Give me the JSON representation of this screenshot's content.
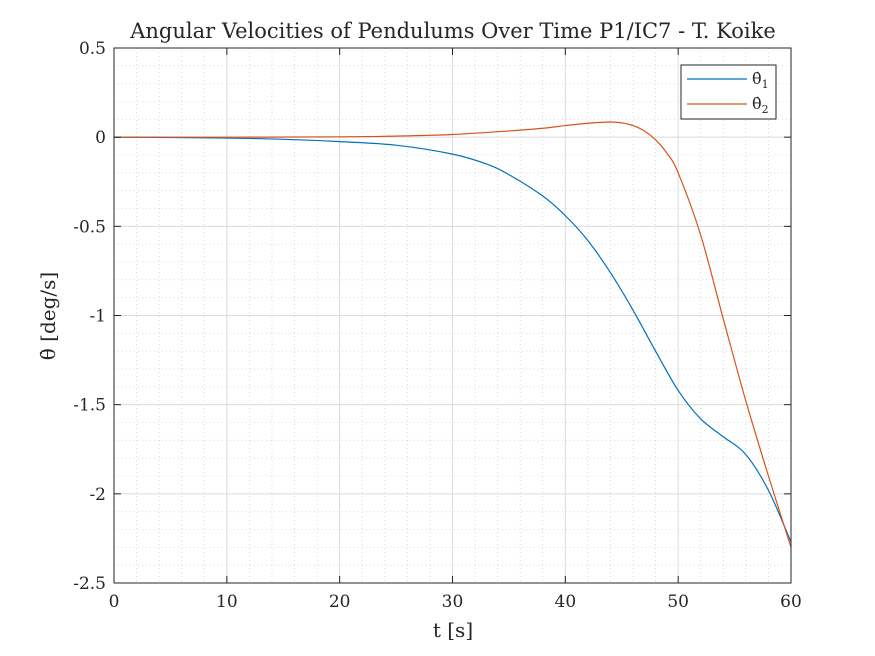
{
  "chart_data": {
    "type": "line",
    "title": "Angular Velocities of Pendulums Over Time P1/IC7 - T. Koike",
    "xlabel": "t [s]",
    "ylabel": "θ̇ [deg/s]",
    "xlim": [
      0,
      60
    ],
    "ylim": [
      -2.5,
      0.5
    ],
    "xticks": [
      0,
      10,
      20,
      30,
      40,
      50,
      60
    ],
    "yticks": [
      0.5,
      0,
      -0.5,
      -1,
      -1.5,
      -2,
      -2.5
    ],
    "xtick_labels": [
      "0",
      "10",
      "20",
      "30",
      "40",
      "50",
      "60"
    ],
    "ytick_labels": [
      "0.5",
      "0",
      "-0.5",
      "-1",
      "-1.5",
      "-2",
      "-2.5"
    ],
    "grid": true,
    "minor_grid": true,
    "legend_position": "top-right",
    "series": [
      {
        "name": "θ̇₁",
        "legend_base": "θ̇",
        "legend_sub": "1",
        "color": "#0072BD",
        "x": [
          0,
          5,
          10,
          15,
          20,
          25,
          30,
          33,
          35,
          38,
          40,
          42,
          44,
          46,
          48,
          50,
          52,
          54,
          56,
          58,
          60
        ],
        "y": [
          0,
          -0.002,
          -0.005,
          -0.012,
          -0.025,
          -0.045,
          -0.095,
          -0.15,
          -0.21,
          -0.33,
          -0.44,
          -0.58,
          -0.76,
          -0.97,
          -1.2,
          -1.42,
          -1.58,
          -1.68,
          -1.78,
          -1.98,
          -2.27
        ]
      },
      {
        "name": "θ̇₂",
        "legend_base": "θ̇",
        "legend_sub": "2",
        "color": "#D95319",
        "x": [
          0,
          10,
          20,
          25,
          30,
          35,
          38,
          40,
          42,
          44,
          45,
          46,
          47,
          48,
          49,
          50,
          52,
          54,
          56,
          58,
          60
        ],
        "y": [
          0,
          0,
          0.002,
          0.006,
          0.015,
          0.035,
          0.05,
          0.065,
          0.078,
          0.085,
          0.08,
          0.065,
          0.035,
          -0.015,
          -0.09,
          -0.2,
          -0.55,
          -1.02,
          -1.48,
          -1.9,
          -2.3
        ]
      }
    ]
  }
}
